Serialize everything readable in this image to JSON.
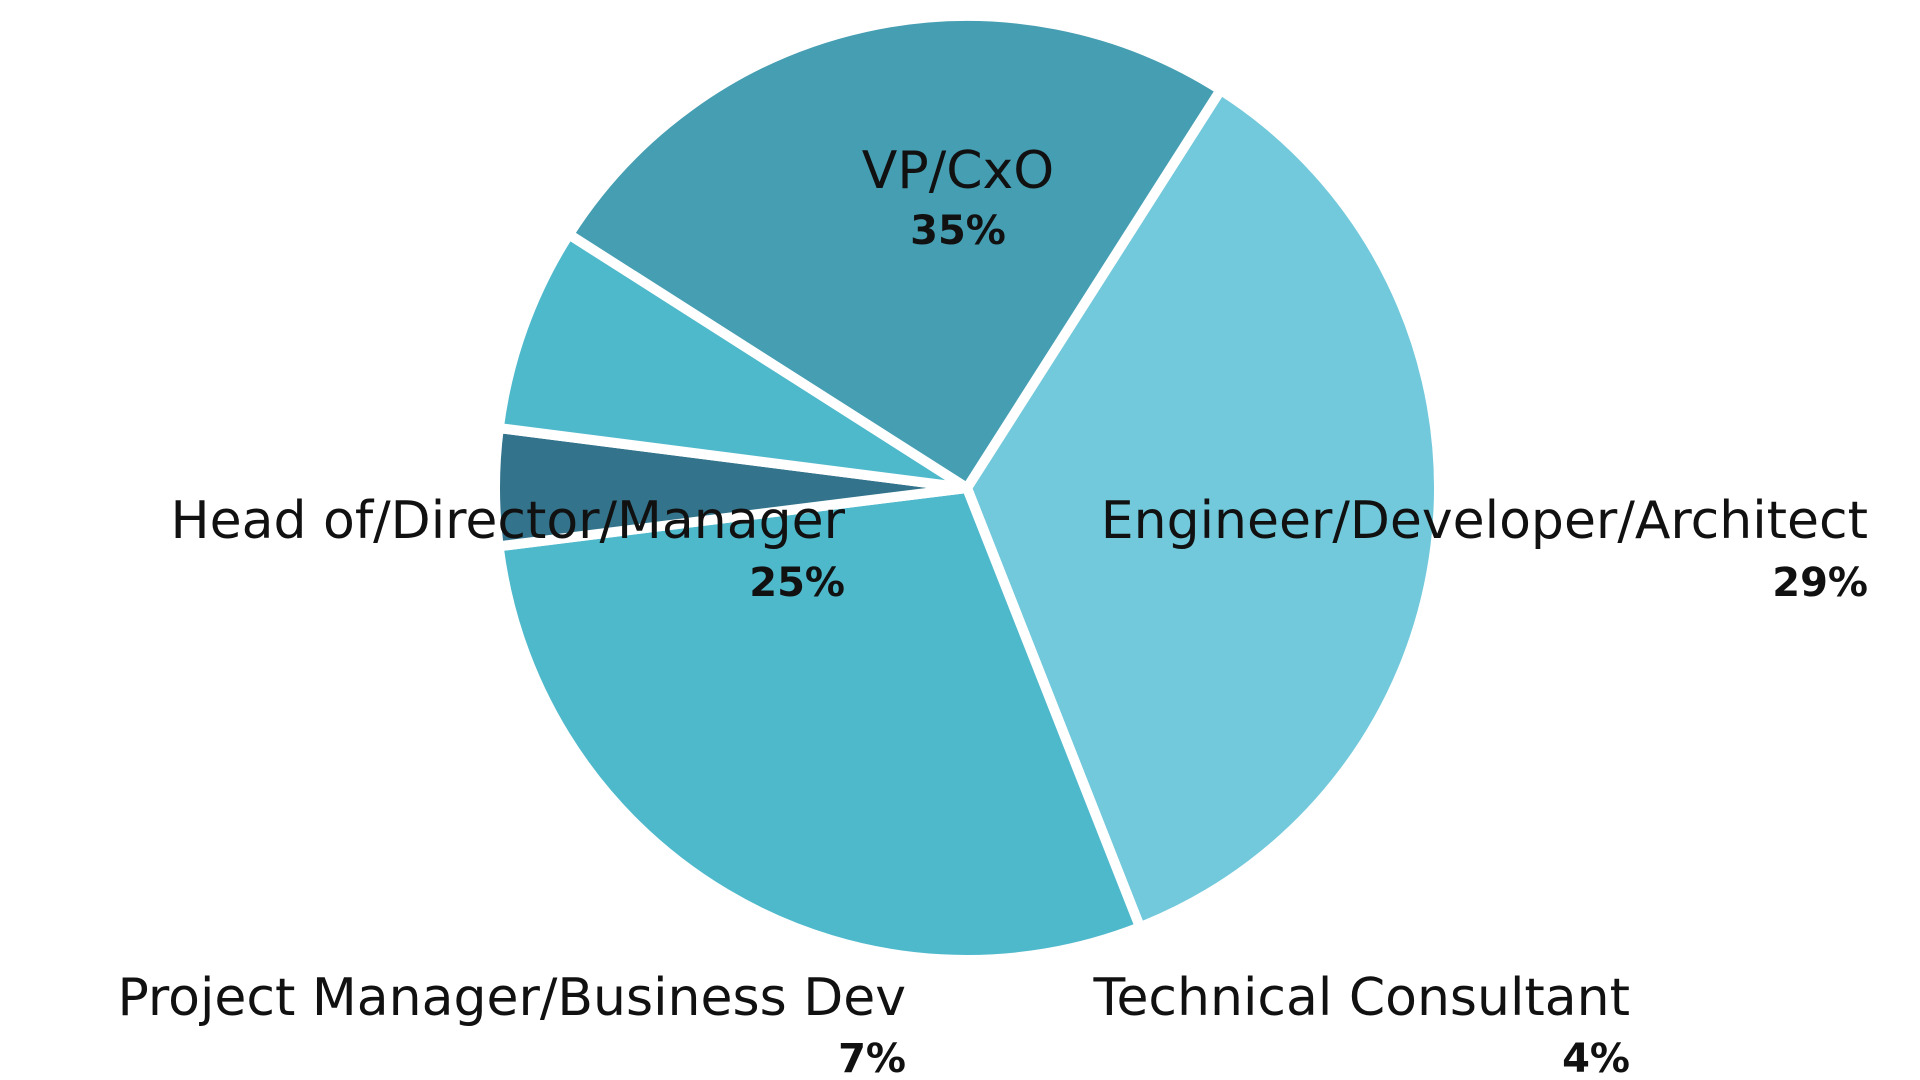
{
  "chart_data": {
    "type": "pie",
    "title": "",
    "series": [
      {
        "slices": [
          {
            "label": "VP/CxO",
            "value": 35,
            "display": "35%",
            "color": "#72C9DB"
          },
          {
            "label": "Engineer/Developer/Architect",
            "value": 29,
            "display": "29%",
            "color": "#4FB9CC"
          },
          {
            "label": "Technical Consultant",
            "value": 4,
            "display": "4%",
            "color": "#33748C"
          },
          {
            "label": "Project Manager/Business Dev",
            "value": 7,
            "display": "7%",
            "color": "#4FB9CC"
          },
          {
            "label": "Head of/Director/Manager",
            "value": 25,
            "display": "25%",
            "color": "#459EB2"
          }
        ]
      }
    ],
    "legend": "none",
    "labels": "outside-with-percent"
  }
}
